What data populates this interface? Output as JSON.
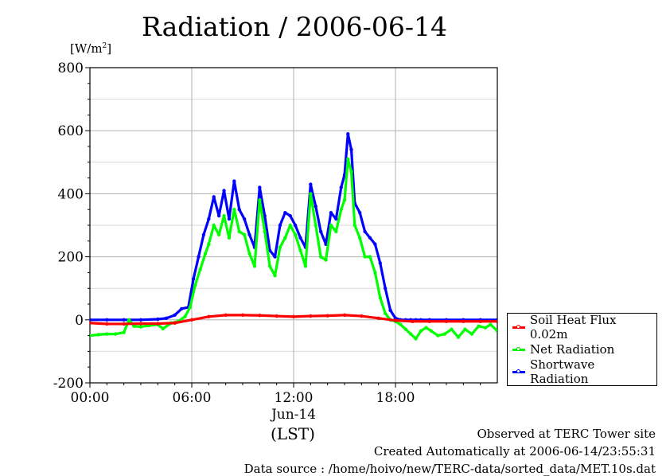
{
  "header": {
    "title": "Radiation / 2006-06-14",
    "unit_prefix": "[W/m",
    "unit_power": "2",
    "unit_suffix": "]"
  },
  "footer": {
    "observed": "Observed at TERC Tower site",
    "created": "Created Automatically at 2006-06-14/23:55:31",
    "source": "Data source : /home/hoivo/new/TERC-data/sorted_data/MET.10s.dat",
    "time_zone": "(LST)"
  },
  "chart_data": {
    "type": "line",
    "title": "Radiation / 2006-06-14",
    "ylabel": "[W/m2]",
    "xlabel": "(LST)",
    "x_unit": "hours",
    "xlim": [
      0,
      24
    ],
    "ylim": [
      -200,
      800
    ],
    "y_ticks": [
      -200,
      0,
      200,
      400,
      600,
      800
    ],
    "x_ticks": [
      0,
      6,
      12,
      18
    ],
    "x_tick_labels": [
      "00:00",
      "06:00",
      "12:00",
      "18:00"
    ],
    "date_label": "Jun-14",
    "grid": true,
    "legend_position": "right",
    "series": [
      {
        "name": "Soil Heat Flux 0.02m",
        "color": "#ff0000",
        "x": [
          0,
          1,
          2,
          3,
          4,
          5,
          6,
          7,
          8,
          9,
          10,
          11,
          12,
          13,
          14,
          15,
          16,
          17,
          18,
          19,
          20,
          21,
          22,
          23,
          24
        ],
        "y": [
          -10,
          -13,
          -13,
          -12,
          -12,
          -10,
          0,
          10,
          15,
          15,
          14,
          12,
          10,
          12,
          13,
          15,
          12,
          5,
          -2,
          -5,
          -5,
          -5,
          -5,
          -5,
          -5
        ]
      },
      {
        "name": "Net Radiation",
        "color": "#00ff00",
        "x": [
          0,
          0.5,
          1,
          1.5,
          2,
          2.3,
          2.6,
          3,
          3.5,
          4,
          4.3,
          4.8,
          5.2,
          5.6,
          5.9,
          6.2,
          6.5,
          6.8,
          7.0,
          7.3,
          7.6,
          7.9,
          8.2,
          8.5,
          8.8,
          9.1,
          9.4,
          9.7,
          10.0,
          10.3,
          10.6,
          10.9,
          11.2,
          11.5,
          11.8,
          12.1,
          12.4,
          12.7,
          13.0,
          13.3,
          13.6,
          13.9,
          14.2,
          14.5,
          14.8,
          15.0,
          15.2,
          15.4,
          15.6,
          15.9,
          16.2,
          16.5,
          16.8,
          17.1,
          17.4,
          17.7,
          18.0,
          18.3,
          18.6,
          18.9,
          19.2,
          19.5,
          19.8,
          20.1,
          20.5,
          20.9,
          21.3,
          21.7,
          22.1,
          22.5,
          22.9,
          23.3,
          23.6,
          24.0
        ],
        "y": [
          -50,
          -47,
          -45,
          -45,
          -40,
          0,
          -20,
          -22,
          -18,
          -15,
          -28,
          -10,
          -5,
          10,
          40,
          110,
          160,
          210,
          240,
          300,
          270,
          330,
          260,
          350,
          280,
          270,
          210,
          170,
          380,
          280,
          170,
          140,
          230,
          260,
          300,
          270,
          220,
          170,
          400,
          300,
          200,
          190,
          300,
          280,
          350,
          380,
          510,
          470,
          300,
          260,
          200,
          200,
          150,
          70,
          20,
          0,
          -5,
          -15,
          -30,
          -45,
          -60,
          -35,
          -25,
          -35,
          -50,
          -45,
          -30,
          -55,
          -30,
          -45,
          -20,
          -25,
          -15,
          -35
        ]
      },
      {
        "name": "Shortwave Radiation",
        "color": "#0000ff",
        "x": [
          0,
          1,
          2,
          3,
          4,
          4.5,
          5.0,
          5.4,
          5.8,
          6.1,
          6.4,
          6.7,
          7.0,
          7.3,
          7.6,
          7.9,
          8.2,
          8.5,
          8.8,
          9.1,
          9.4,
          9.7,
          10.0,
          10.3,
          10.6,
          10.9,
          11.2,
          11.5,
          11.8,
          12.1,
          12.4,
          12.7,
          13.0,
          13.3,
          13.6,
          13.9,
          14.2,
          14.5,
          14.8,
          15.0,
          15.2,
          15.4,
          15.6,
          15.9,
          16.2,
          16.5,
          16.8,
          17.1,
          17.4,
          17.7,
          18.0,
          18.3,
          18.6,
          18.9,
          19.2,
          19.5,
          20,
          21,
          22,
          23,
          24
        ],
        "y": [
          0,
          0,
          0,
          0,
          2,
          5,
          15,
          35,
          40,
          130,
          200,
          270,
          320,
          390,
          330,
          410,
          320,
          440,
          350,
          320,
          270,
          230,
          420,
          330,
          220,
          200,
          300,
          340,
          330,
          300,
          260,
          230,
          430,
          360,
          280,
          240,
          340,
          320,
          420,
          460,
          590,
          540,
          370,
          340,
          280,
          260,
          240,
          180,
          100,
          30,
          5,
          0,
          0,
          0,
          0,
          0,
          0,
          0,
          0,
          0,
          0
        ]
      }
    ]
  }
}
